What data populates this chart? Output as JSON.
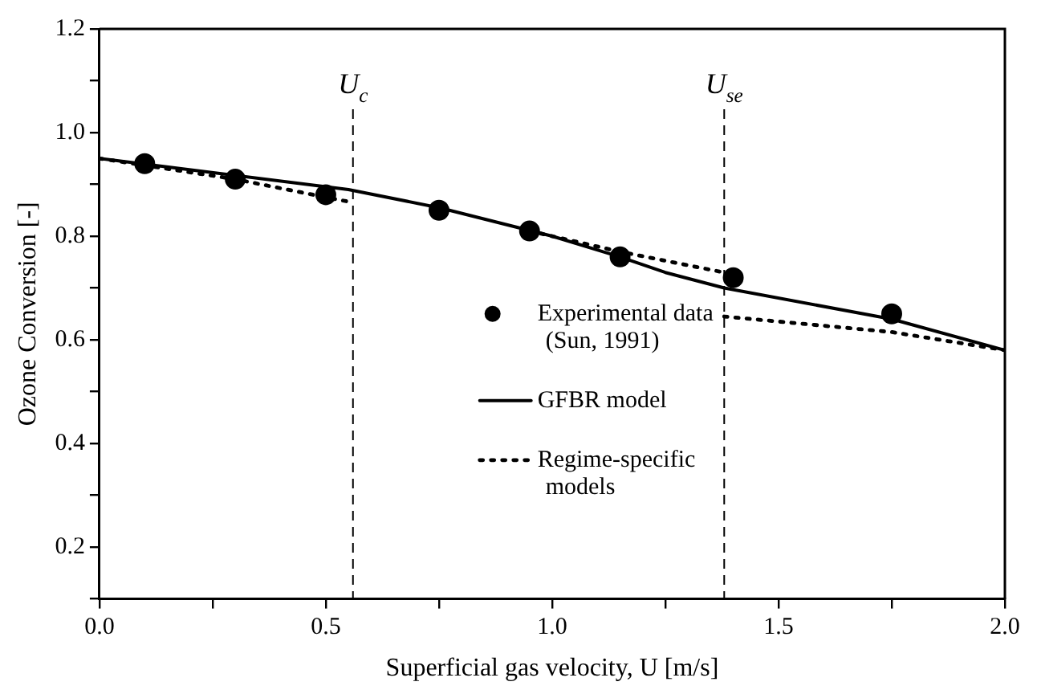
{
  "chart_data": {
    "type": "line",
    "xlabel": "Superficial gas velocity, U [m/s]",
    "ylabel": "Ozone Conversion [-]",
    "xlim": [
      0,
      2.0
    ],
    "ylim": [
      0.1,
      1.2
    ],
    "xticks": [
      {
        "value": 0,
        "label": "0.0"
      },
      {
        "value": 0.25,
        "label": null
      },
      {
        "value": 0.5,
        "label": "0.5"
      },
      {
        "value": 0.75,
        "label": null
      },
      {
        "value": 1.0,
        "label": "1.0"
      },
      {
        "value": 1.25,
        "label": null
      },
      {
        "value": 1.5,
        "label": "1.5"
      },
      {
        "value": 1.75,
        "label": null
      },
      {
        "value": 2.0,
        "label": "2.0"
      }
    ],
    "yticks": [
      {
        "value": 0.1,
        "label": null
      },
      {
        "value": 0.2,
        "label": "0.2"
      },
      {
        "value": 0.3,
        "label": null
      },
      {
        "value": 0.4,
        "label": "0.4"
      },
      {
        "value": 0.5,
        "label": null
      },
      {
        "value": 0.6,
        "label": "0.6"
      },
      {
        "value": 0.7,
        "label": null
      },
      {
        "value": 0.8,
        "label": "0.8"
      },
      {
        "value": 0.9,
        "label": null
      },
      {
        "value": 1.0,
        "label": "1.0"
      },
      {
        "value": 1.1,
        "label": null
      },
      {
        "value": 1.2,
        "label": "1.2"
      }
    ],
    "grid": false,
    "legend": "center",
    "series": [
      {
        "name": "Experimental data (Sun, 1991)",
        "type": "scatter",
        "marker": "circle",
        "color": "#000000",
        "x": [
          0.1,
          0.3,
          0.5,
          0.75,
          0.95,
          1.15,
          1.4,
          1.75
        ],
        "values": [
          0.94,
          0.91,
          0.88,
          0.85,
          0.81,
          0.76,
          0.72,
          0.65
        ]
      },
      {
        "name": "GFBR model",
        "type": "line",
        "marker": "none",
        "line_style": "solid",
        "color": "#000000",
        "x": [
          0,
          0.55,
          0.75,
          1.0,
          1.15,
          1.25,
          1.38,
          1.75,
          2.0
        ],
        "values": [
          0.95,
          0.89,
          0.855,
          0.8,
          0.76,
          0.73,
          0.7,
          0.64,
          0.58
        ]
      },
      {
        "name": "Regime-specific models",
        "type": "line",
        "marker": "none",
        "line_style": "dotted",
        "color": "#000000",
        "x": [
          0,
          0.3,
          0.5,
          0.56,
          null,
          0.95,
          1.15,
          1.38,
          null,
          1.38,
          1.75,
          2.0
        ],
        "values": [
          0.95,
          0.91,
          0.875,
          0.865,
          null,
          0.81,
          0.77,
          0.73,
          null,
          0.645,
          0.615,
          0.58
        ]
      }
    ],
    "ref_lines": [
      {
        "axis": "x",
        "value": 0.56,
        "label": "U$_{c}$",
        "line_style": "dashed"
      },
      {
        "axis": "x",
        "value": 1.38,
        "label": "U$_{se}$",
        "line_style": "dashed"
      }
    ]
  }
}
